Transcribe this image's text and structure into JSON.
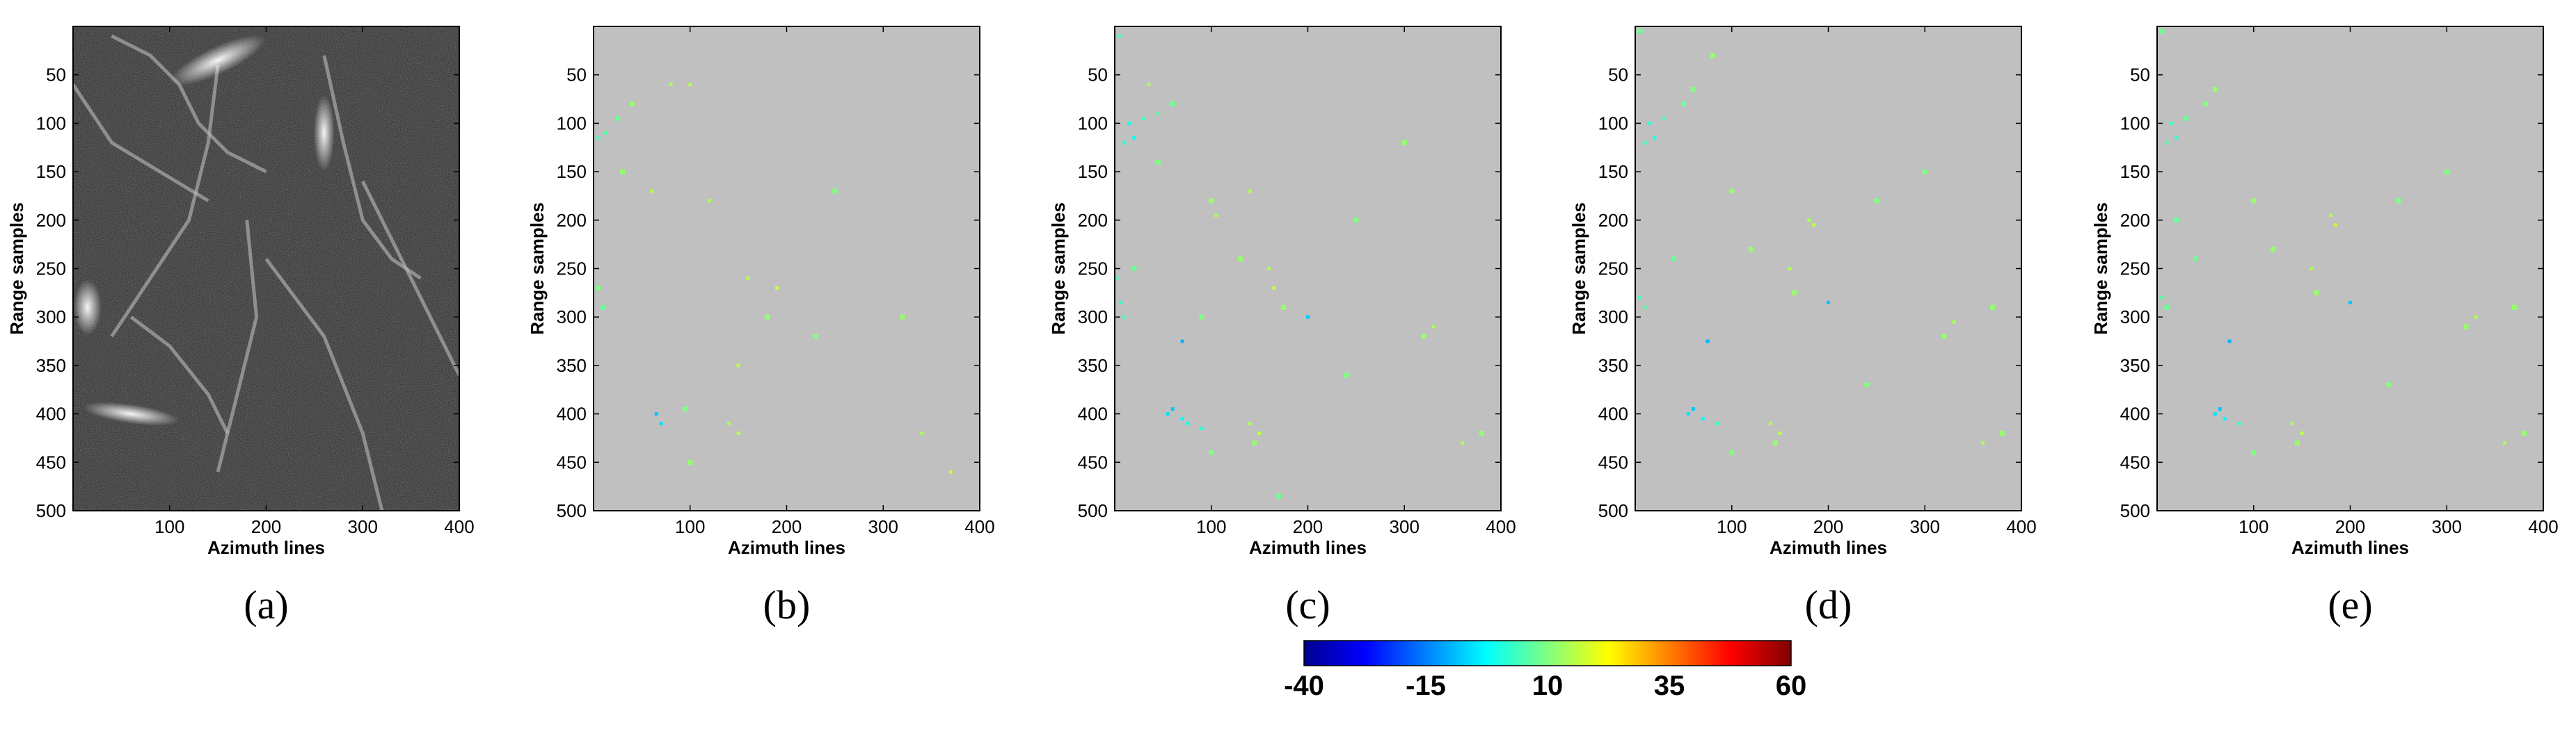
{
  "figure": {
    "panels": [
      {
        "label": "(a)"
      },
      {
        "label": "(b)"
      },
      {
        "label": "(c)"
      },
      {
        "label": "(d)"
      },
      {
        "label": "(e)"
      }
    ],
    "colorbar": {
      "ticks": [
        "-40",
        "-15",
        "10",
        "35",
        "60"
      ],
      "range": [
        -40,
        60
      ],
      "colormap": "jet"
    }
  },
  "chart_data": [
    {
      "type": "heatmap",
      "panel": "(a)",
      "content": "SAR amplitude image (grayscale)",
      "xlabel": "Azimuth lines",
      "ylabel": "Range samples",
      "xticks": [
        100,
        200,
        300,
        400
      ],
      "yticks": [
        50,
        100,
        150,
        200,
        250,
        300,
        350,
        400,
        450,
        500
      ],
      "xlim": [
        0,
        400
      ],
      "ylim": [
        500,
        0
      ],
      "colors": {
        "bright": "#ffffff",
        "dark": "#222222"
      }
    },
    {
      "type": "heatmap",
      "panel": "(b)",
      "background": "#c0c0c0",
      "xlabel": "Azimuth lines",
      "ylabel": "Range samples",
      "xticks": [
        100,
        200,
        300,
        400
      ],
      "yticks": [
        50,
        100,
        150,
        200,
        250,
        300,
        350,
        400,
        450,
        500
      ],
      "xlim": [
        0,
        400
      ],
      "ylim": [
        500,
        0
      ],
      "points": [
        [
          5,
          115,
          5
        ],
        [
          12,
          110,
          6
        ],
        [
          25,
          95,
          8
        ],
        [
          40,
          80,
          12
        ],
        [
          60,
          170,
          14
        ],
        [
          100,
          60,
          15
        ],
        [
          120,
          180,
          14
        ],
        [
          160,
          260,
          15
        ],
        [
          180,
          300,
          12
        ],
        [
          190,
          270,
          16
        ],
        [
          5,
          270,
          10
        ],
        [
          10,
          290,
          8
        ],
        [
          65,
          400,
          -8
        ],
        [
          70,
          410,
          -5
        ],
        [
          95,
          395,
          10
        ],
        [
          140,
          410,
          14
        ],
        [
          150,
          420,
          16
        ],
        [
          100,
          450,
          12
        ],
        [
          230,
          320,
          10
        ],
        [
          320,
          300,
          12
        ],
        [
          340,
          420,
          14
        ],
        [
          370,
          460,
          16
        ],
        [
          250,
          170,
          10
        ],
        [
          80,
          60,
          14
        ],
        [
          150,
          350,
          16
        ],
        [
          30,
          150,
          12
        ]
      ]
    },
    {
      "type": "heatmap",
      "panel": "(c)",
      "background": "#c0c0c0",
      "xlabel": "Azimuth lines",
      "ylabel": "Range samples",
      "xticks": [
        100,
        200,
        300,
        400
      ],
      "yticks": [
        50,
        100,
        150,
        200,
        250,
        300,
        350,
        400,
        450,
        500
      ],
      "xlim": [
        0,
        400
      ],
      "ylim": [
        500,
        0
      ],
      "points": [
        [
          5,
          10,
          5
        ],
        [
          15,
          100,
          0
        ],
        [
          20,
          115,
          -2
        ],
        [
          10,
          120,
          2
        ],
        [
          30,
          95,
          5
        ],
        [
          45,
          90,
          6
        ],
        [
          60,
          80,
          8
        ],
        [
          100,
          180,
          12
        ],
        [
          105,
          195,
          14
        ],
        [
          140,
          170,
          14
        ],
        [
          160,
          250,
          14
        ],
        [
          165,
          270,
          16
        ],
        [
          175,
          290,
          12
        ],
        [
          200,
          300,
          -8
        ],
        [
          2,
          260,
          5
        ],
        [
          6,
          285,
          2
        ],
        [
          10,
          300,
          4
        ],
        [
          70,
          325,
          -10
        ],
        [
          55,
          400,
          -5
        ],
        [
          60,
          395,
          -8
        ],
        [
          70,
          405,
          -3
        ],
        [
          75,
          410,
          0
        ],
        [
          90,
          415,
          2
        ],
        [
          140,
          410,
          14
        ],
        [
          150,
          420,
          16
        ],
        [
          145,
          430,
          12
        ],
        [
          20,
          250,
          8
        ],
        [
          250,
          200,
          10
        ],
        [
          320,
          320,
          12
        ],
        [
          330,
          310,
          14
        ],
        [
          360,
          430,
          14
        ],
        [
          380,
          420,
          12
        ],
        [
          100,
          440,
          10
        ],
        [
          170,
          485,
          8
        ],
        [
          240,
          360,
          10
        ],
        [
          130,
          240,
          12
        ],
        [
          300,
          120,
          12
        ],
        [
          45,
          140,
          10
        ],
        [
          35,
          60,
          14
        ],
        [
          90,
          300,
          10
        ]
      ]
    },
    {
      "type": "heatmap",
      "panel": "(d)",
      "background": "#c0c0c0",
      "xlabel": "Azimuth lines",
      "ylabel": "Range samples",
      "xticks": [
        100,
        200,
        300,
        400
      ],
      "yticks": [
        50,
        100,
        150,
        200,
        250,
        300,
        350,
        400,
        450,
        500
      ],
      "xlim": [
        0,
        400
      ],
      "ylim": [
        500,
        0
      ],
      "points": [
        [
          5,
          5,
          8
        ],
        [
          15,
          100,
          2
        ],
        [
          20,
          115,
          0
        ],
        [
          10,
          120,
          4
        ],
        [
          30,
          95,
          6
        ],
        [
          50,
          80,
          8
        ],
        [
          60,
          65,
          10
        ],
        [
          100,
          170,
          12
        ],
        [
          180,
          200,
          14
        ],
        [
          185,
          205,
          16
        ],
        [
          160,
          250,
          14
        ],
        [
          165,
          275,
          12
        ],
        [
          200,
          285,
          -8
        ],
        [
          5,
          280,
          4
        ],
        [
          10,
          290,
          6
        ],
        [
          75,
          325,
          -10
        ],
        [
          55,
          400,
          -5
        ],
        [
          60,
          395,
          -8
        ],
        [
          70,
          405,
          -3
        ],
        [
          85,
          410,
          2
        ],
        [
          140,
          410,
          14
        ],
        [
          150,
          420,
          16
        ],
        [
          145,
          430,
          12
        ],
        [
          320,
          320,
          12
        ],
        [
          330,
          305,
          14
        ],
        [
          360,
          430,
          14
        ],
        [
          380,
          420,
          12
        ],
        [
          250,
          180,
          10
        ],
        [
          100,
          440,
          10
        ],
        [
          40,
          240,
          8
        ],
        [
          300,
          150,
          10
        ],
        [
          120,
          230,
          12
        ],
        [
          240,
          370,
          10
        ],
        [
          80,
          30,
          12
        ],
        [
          370,
          290,
          12
        ]
      ]
    },
    {
      "type": "heatmap",
      "panel": "(e)",
      "background": "#c0c0c0",
      "xlabel": "Azimuth lines",
      "ylabel": "Range samples",
      "xticks": [
        100,
        200,
        300,
        400
      ],
      "yticks": [
        50,
        100,
        150,
        200,
        250,
        300,
        350,
        400,
        450,
        500
      ],
      "xlim": [
        0,
        400
      ],
      "ylim": [
        500,
        0
      ],
      "points": [
        [
          5,
          5,
          8
        ],
        [
          15,
          100,
          4
        ],
        [
          20,
          115,
          2
        ],
        [
          10,
          120,
          6
        ],
        [
          30,
          95,
          8
        ],
        [
          50,
          80,
          10
        ],
        [
          60,
          65,
          12
        ],
        [
          100,
          180,
          12
        ],
        [
          180,
          195,
          14
        ],
        [
          185,
          205,
          16
        ],
        [
          160,
          250,
          14
        ],
        [
          165,
          275,
          12
        ],
        [
          200,
          285,
          -8
        ],
        [
          5,
          280,
          6
        ],
        [
          10,
          290,
          8
        ],
        [
          75,
          325,
          -10
        ],
        [
          60,
          400,
          -5
        ],
        [
          65,
          395,
          -8
        ],
        [
          70,
          405,
          -3
        ],
        [
          85,
          410,
          2
        ],
        [
          140,
          410,
          14
        ],
        [
          150,
          420,
          16
        ],
        [
          145,
          430,
          12
        ],
        [
          320,
          310,
          12
        ],
        [
          330,
          300,
          14
        ],
        [
          360,
          430,
          14
        ],
        [
          380,
          420,
          12
        ],
        [
          250,
          180,
          10
        ],
        [
          100,
          440,
          10
        ],
        [
          40,
          240,
          8
        ],
        [
          300,
          150,
          10
        ],
        [
          120,
          230,
          12
        ],
        [
          240,
          370,
          10
        ],
        [
          370,
          290,
          12
        ],
        [
          20,
          200,
          8
        ]
      ]
    }
  ]
}
